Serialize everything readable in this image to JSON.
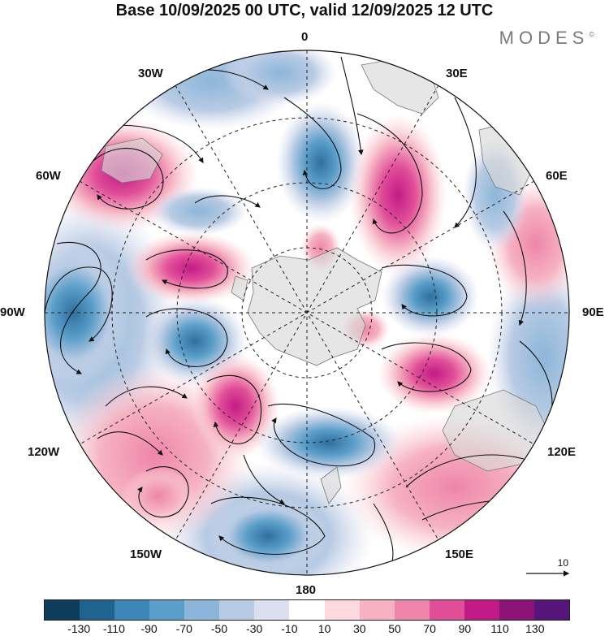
{
  "header": {
    "title": "Base 10/09/2025 00 UTC, valid 12/09/2025 12 UTC",
    "brand": "MODES",
    "brand_mark": "©"
  },
  "map": {
    "projection_labels": {
      "top": "0",
      "top_right": "30E",
      "right_upper": "60E",
      "right": "90E",
      "right_lower": "120E",
      "bottom_right": "150E",
      "bottom": "180",
      "bottom_left": "150W",
      "left_lower": "120W",
      "left": "90W",
      "left_upper": "60W",
      "top_left": "30W"
    },
    "reference_vector": "10"
  },
  "colorbar": {
    "colors": [
      "#0e3d5c",
      "#1f6391",
      "#3d86b8",
      "#5b9ec9",
      "#8cb6d9",
      "#b9cbe4",
      "#dcdff0",
      "#ffffff",
      "#fbd9de",
      "#f6b2c3",
      "#ef85aa",
      "#e14e98",
      "#c21b86",
      "#8c1477",
      "#55157a"
    ],
    "ticks": [
      "-130",
      "-110",
      "-90",
      "-70",
      "-50",
      "-30",
      "-10",
      "10",
      "30",
      "50",
      "70",
      "90",
      "110",
      "130"
    ]
  }
}
